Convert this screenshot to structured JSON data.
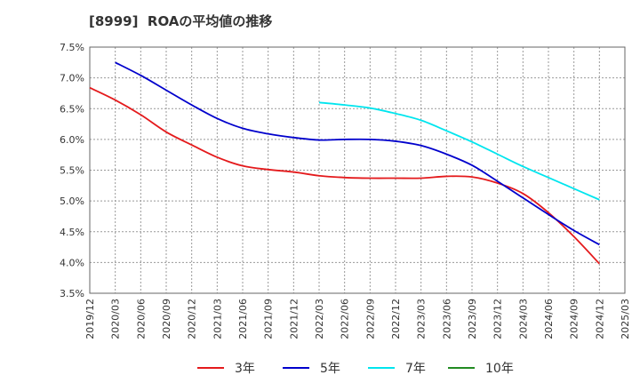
{
  "title": "[8999]  ROAの平均値の推移",
  "chart_data": {
    "type": "line",
    "title": "[8999]  ROAの平均値の推移",
    "xlabel": "",
    "ylabel": "",
    "x": [
      "2019/12",
      "2020/03",
      "2020/06",
      "2020/09",
      "2020/12",
      "2021/03",
      "2021/06",
      "2021/09",
      "2021/12",
      "2022/03",
      "2022/06",
      "2022/09",
      "2022/12",
      "2023/03",
      "2023/06",
      "2023/09",
      "2023/12",
      "2024/03",
      "2024/06",
      "2024/09",
      "2024/12",
      "2025/03"
    ],
    "ylim": [
      3.5,
      7.5
    ],
    "yticks": [
      3.5,
      4.0,
      4.5,
      5.0,
      5.5,
      6.0,
      6.5,
      7.0,
      7.5
    ],
    "ytick_labels": [
      "3.5%",
      "4.0%",
      "4.5%",
      "5.0%",
      "5.5%",
      "6.0%",
      "6.5%",
      "7.0%",
      "7.5%"
    ],
    "grid": true,
    "legend_position": "bottom",
    "series": [
      {
        "name": "3年",
        "color": "#e41a1c",
        "values": [
          6.84,
          6.64,
          6.4,
          6.12,
          5.91,
          5.71,
          5.57,
          5.51,
          5.47,
          5.41,
          5.38,
          5.37,
          5.37,
          5.37,
          5.4,
          5.39,
          5.29,
          5.12,
          4.81,
          4.42,
          3.98,
          null
        ]
      },
      {
        "name": "5年",
        "color": "#0000cc",
        "values": [
          null,
          7.25,
          7.04,
          6.8,
          6.56,
          6.34,
          6.18,
          6.09,
          6.03,
          5.99,
          6.0,
          6.0,
          5.97,
          5.9,
          5.76,
          5.58,
          5.32,
          5.05,
          4.78,
          4.52,
          4.29,
          null
        ]
      },
      {
        "name": "7年",
        "color": "#00e5ee",
        "values": [
          null,
          null,
          null,
          null,
          null,
          null,
          null,
          null,
          null,
          6.6,
          6.56,
          6.51,
          6.42,
          6.31,
          6.14,
          5.96,
          5.76,
          5.56,
          5.38,
          5.2,
          5.02,
          null
        ]
      },
      {
        "name": "10年",
        "color": "#228b22",
        "values": [
          null,
          null,
          null,
          null,
          null,
          null,
          null,
          null,
          null,
          null,
          null,
          null,
          null,
          null,
          null,
          null,
          null,
          null,
          null,
          null,
          null,
          null
        ]
      }
    ]
  }
}
